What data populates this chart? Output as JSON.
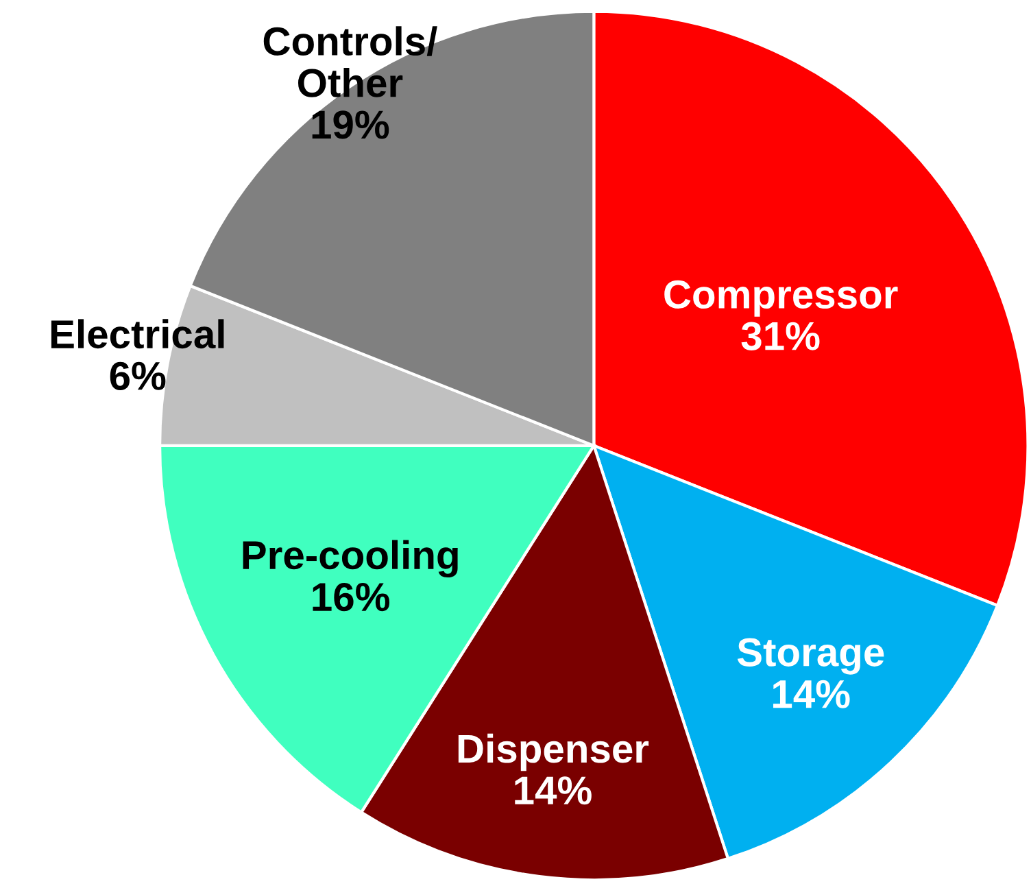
{
  "chart_data": {
    "type": "pie",
    "categories": [
      "Compressor",
      "Storage",
      "Dispenser",
      "Pre-cooling",
      "Electrical",
      "Controls/\nOther"
    ],
    "values": [
      31,
      14,
      14,
      16,
      6,
      19
    ],
    "value_labels": [
      "31%",
      "14%",
      "14%",
      "16%",
      "6%",
      "19%"
    ],
    "colors": [
      "#ff0000",
      "#00b0f0",
      "#7a0000",
      "#40ffbf",
      "#c0c0c0",
      "#808080"
    ],
    "legend": false
  }
}
